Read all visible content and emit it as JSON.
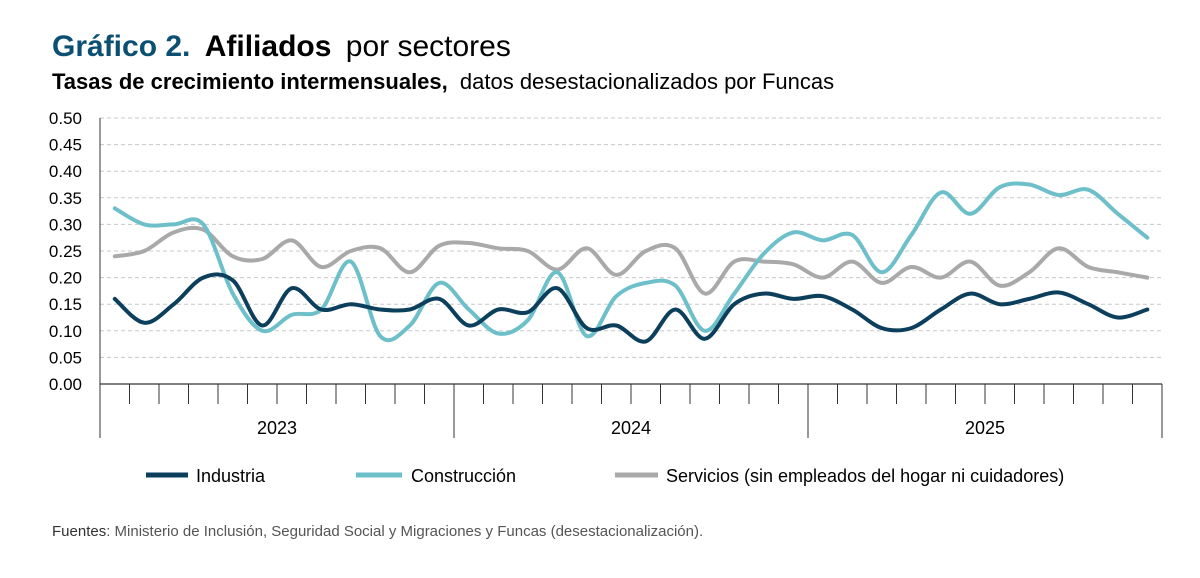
{
  "title": {
    "number": "Gráfico 2.",
    "bold": "Afiliados",
    "rest": "por sectores"
  },
  "subtitle": {
    "bold": "Tasas de crecimiento intermensuales,",
    "rest": "datos desestacionalizados por Funcas"
  },
  "source": {
    "label": "Fuentes",
    "text": ": Ministerio de Inclusión, Seguridad Social y Migraciones y Funcas (desestacionalización)."
  },
  "colors": {
    "title_accent": "#0b4f72",
    "industria": "#0b3f5c",
    "construccion": "#6dbfc9",
    "servicios": "#a9a9a9",
    "grid": "#c8c8c8",
    "axis": "#333333"
  },
  "chart_data": {
    "type": "line",
    "ylim": [
      0,
      0.5
    ],
    "yticks": [
      "0.00",
      "0.05",
      "0.10",
      "0.15",
      "0.20",
      "0.25",
      "0.30",
      "0.35",
      "0.40",
      "0.45",
      "0.50"
    ],
    "year_labels": [
      "2023",
      "2024",
      "2025"
    ],
    "months_per_year": 12,
    "months_in_last_year": 12,
    "grid": "horizontal dashed",
    "legend_position": "bottom",
    "series": [
      {
        "name": "Industria",
        "color_key": "industria",
        "values": [
          0.16,
          0.115,
          0.15,
          0.2,
          0.195,
          0.11,
          0.18,
          0.14,
          0.15,
          0.14,
          0.14,
          0.16,
          0.11,
          0.14,
          0.135,
          0.18,
          0.105,
          0.11,
          0.08,
          0.14,
          0.085,
          0.15,
          0.17,
          0.16,
          0.165,
          0.14,
          0.105,
          0.105,
          0.14,
          0.17,
          0.15,
          0.16,
          0.172,
          0.15,
          0.125,
          0.14
        ]
      },
      {
        "name": "Construcción",
        "color_key": "construccion",
        "values": [
          0.33,
          0.3,
          0.3,
          0.3,
          0.17,
          0.1,
          0.13,
          0.14,
          0.23,
          0.09,
          0.11,
          0.19,
          0.14,
          0.095,
          0.12,
          0.21,
          0.09,
          0.165,
          0.19,
          0.185,
          0.1,
          0.17,
          0.245,
          0.285,
          0.27,
          0.28,
          0.21,
          0.28,
          0.36,
          0.32,
          0.37,
          0.375,
          0.355,
          0.365,
          0.32,
          0.275
        ]
      },
      {
        "name": "Servicios (sin empleados del hogar ni cuidadores)",
        "color_key": "servicios",
        "values": [
          0.24,
          0.25,
          0.285,
          0.29,
          0.24,
          0.235,
          0.27,
          0.22,
          0.25,
          0.255,
          0.21,
          0.26,
          0.265,
          0.255,
          0.25,
          0.215,
          0.255,
          0.205,
          0.25,
          0.255,
          0.17,
          0.23,
          0.23,
          0.225,
          0.2,
          0.23,
          0.19,
          0.22,
          0.2,
          0.23,
          0.185,
          0.21,
          0.255,
          0.22,
          0.21,
          0.2
        ]
      }
    ]
  }
}
